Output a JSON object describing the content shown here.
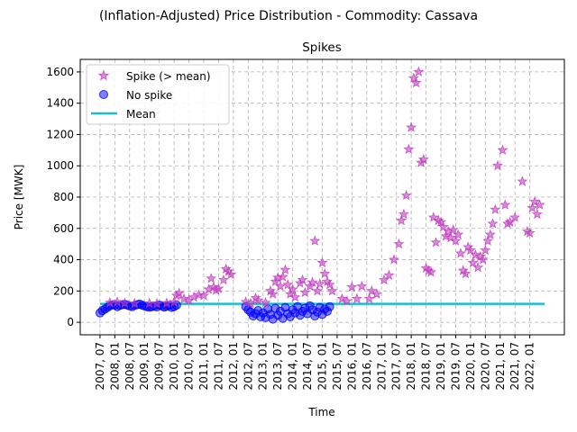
{
  "suptitle": "(Inflation-Adjusted) Price Distribution - Commodity: Cassava",
  "colors": {
    "spike": "#bf40bf",
    "no_spike": "#0000ff",
    "mean": "#17becf"
  },
  "chart_data": {
    "type": "scatter",
    "title": "Spikes",
    "xlabel": "Time",
    "ylabel": "Price [MWK]",
    "xlim": [
      "2006-11",
      "2023-03"
    ],
    "ylim": [
      -80,
      1680
    ],
    "grid": true,
    "legend_position": "upper-left",
    "x_ticks": [
      "2007, 07",
      "2008, 01",
      "2008, 07",
      "2009, 01",
      "2009, 07",
      "2010, 01",
      "2010, 07",
      "2011, 01",
      "2011, 07",
      "2012, 01",
      "2012, 07",
      "2013, 01",
      "2013, 07",
      "2014, 01",
      "2014, 07",
      "2015, 01",
      "2015, 07",
      "2016, 01",
      "2016, 07",
      "2017, 01",
      "2017, 07",
      "2018, 01",
      "2018, 07",
      "2019, 01",
      "2019, 07",
      "2020, 01",
      "2020, 07",
      "2021, 01",
      "2021, 07",
      "2022, 01"
    ],
    "y_ticks": [
      0,
      200,
      400,
      600,
      800,
      1000,
      1200,
      1400,
      1600
    ],
    "mean": {
      "name": "Mean",
      "value": 118,
      "x_range": [
        "2007-07",
        "2022-07"
      ]
    },
    "series": [
      {
        "name": "Spike (> mean)",
        "marker": "star",
        "points": [
          [
            "2007-11",
            125
          ],
          [
            "2008-02",
            130
          ],
          [
            "2008-05",
            122
          ],
          [
            "2008-09",
            120
          ],
          [
            "2009-03",
            121
          ],
          [
            "2009-06",
            119
          ],
          [
            "2009-10",
            123
          ],
          [
            "2010-01",
            130
          ],
          [
            "2010-02",
            170
          ],
          [
            "2010-03",
            185
          ],
          [
            "2010-05",
            150
          ],
          [
            "2010-07",
            140
          ],
          [
            "2010-09",
            160
          ],
          [
            "2010-11",
            175
          ],
          [
            "2011-01",
            170
          ],
          [
            "2011-03",
            210
          ],
          [
            "2011-04",
            280
          ],
          [
            "2011-05",
            225
          ],
          [
            "2011-06",
            205
          ],
          [
            "2011-07",
            215
          ],
          [
            "2011-09",
            270
          ],
          [
            "2011-10",
            340
          ],
          [
            "2011-11",
            325
          ],
          [
            "2011-12",
            305
          ],
          [
            "2012-06",
            130
          ],
          [
            "2012-08",
            120
          ],
          [
            "2012-10",
            155
          ],
          [
            "2012-11",
            140
          ],
          [
            "2013-02",
            125
          ],
          [
            "2013-04",
            200
          ],
          [
            "2013-05",
            180
          ],
          [
            "2013-06",
            260
          ],
          [
            "2013-07",
            285
          ],
          [
            "2013-08",
            230
          ],
          [
            "2013-09",
            290
          ],
          [
            "2013-10",
            335
          ],
          [
            "2013-11",
            240
          ],
          [
            "2013-12",
            180
          ],
          [
            "2014-01",
            210
          ],
          [
            "2014-02",
            160
          ],
          [
            "2014-04",
            250
          ],
          [
            "2014-05",
            270
          ],
          [
            "2014-06",
            190
          ],
          [
            "2014-08",
            230
          ],
          [
            "2014-09",
            255
          ],
          [
            "2014-10",
            520
          ],
          [
            "2014-11",
            200
          ],
          [
            "2014-12",
            245
          ],
          [
            "2015-01",
            380
          ],
          [
            "2015-02",
            310
          ],
          [
            "2015-03",
            260
          ],
          [
            "2015-04",
            240
          ],
          [
            "2015-05",
            200
          ],
          [
            "2015-09",
            150
          ],
          [
            "2015-11",
            135
          ],
          [
            "2016-01",
            225
          ],
          [
            "2016-03",
            150
          ],
          [
            "2016-05",
            230
          ],
          [
            "2016-08",
            150
          ],
          [
            "2016-09",
            200
          ],
          [
            "2016-11",
            180
          ],
          [
            "2017-02",
            270
          ],
          [
            "2017-04",
            300
          ],
          [
            "2017-06",
            400
          ],
          [
            "2017-08",
            500
          ],
          [
            "2017-09",
            650
          ],
          [
            "2017-10",
            690
          ],
          [
            "2017-11",
            810
          ],
          [
            "2017-12",
            1105
          ],
          [
            "2018-01",
            1245
          ],
          [
            "2018-02",
            1560
          ],
          [
            "2018-03",
            1530
          ],
          [
            "2018-04",
            1600
          ],
          [
            "2018-05",
            1020
          ],
          [
            "2018-06",
            1040
          ],
          [
            "2018-07",
            345
          ],
          [
            "2018-08",
            330
          ],
          [
            "2018-09",
            320
          ],
          [
            "2018-10",
            670
          ],
          [
            "2018-11",
            510
          ],
          [
            "2018-12",
            650
          ],
          [
            "2019-01",
            640
          ],
          [
            "2019-02",
            610
          ],
          [
            "2019-03",
            550
          ],
          [
            "2019-04",
            580
          ],
          [
            "2019-05",
            540
          ],
          [
            "2019-06",
            590
          ],
          [
            "2019-07",
            520
          ],
          [
            "2019-08",
            560
          ],
          [
            "2019-09",
            440
          ],
          [
            "2019-10",
            330
          ],
          [
            "2019-11",
            310
          ],
          [
            "2019-12",
            480
          ],
          [
            "2020-01",
            460
          ],
          [
            "2020-02",
            380
          ],
          [
            "2020-03",
            430
          ],
          [
            "2020-04",
            350
          ],
          [
            "2020-05",
            420
          ],
          [
            "2020-06",
            400
          ],
          [
            "2020-07",
            460
          ],
          [
            "2020-08",
            520
          ],
          [
            "2020-09",
            560
          ],
          [
            "2020-10",
            630
          ],
          [
            "2020-11",
            720
          ],
          [
            "2020-12",
            1000
          ],
          [
            "2021-02",
            1100
          ],
          [
            "2021-03",
            750
          ],
          [
            "2021-04",
            630
          ],
          [
            "2021-05",
            640
          ],
          [
            "2021-07",
            670
          ],
          [
            "2021-10",
            900
          ],
          [
            "2021-12",
            580
          ],
          [
            "2022-01",
            570
          ],
          [
            "2022-02",
            730
          ],
          [
            "2022-03",
            770
          ],
          [
            "2022-04",
            690
          ],
          [
            "2022-05",
            750
          ]
        ]
      },
      {
        "name": "No spike",
        "marker": "circle",
        "points": [
          [
            "2007-07",
            60
          ],
          [
            "2007-08",
            75
          ],
          [
            "2007-09",
            85
          ],
          [
            "2007-10",
            95
          ],
          [
            "2007-11",
            105
          ],
          [
            "2007-12",
            112
          ],
          [
            "2008-01",
            110
          ],
          [
            "2008-02",
            100
          ],
          [
            "2008-03",
            108
          ],
          [
            "2008-04",
            112
          ],
          [
            "2008-05",
            115
          ],
          [
            "2008-06",
            110
          ],
          [
            "2008-07",
            105
          ],
          [
            "2008-08",
            100
          ],
          [
            "2008-09",
            108
          ],
          [
            "2008-10",
            112
          ],
          [
            "2008-11",
            116
          ],
          [
            "2008-12",
            110
          ],
          [
            "2009-01",
            104
          ],
          [
            "2009-02",
            100
          ],
          [
            "2009-03",
            96
          ],
          [
            "2009-04",
            100
          ],
          [
            "2009-05",
            104
          ],
          [
            "2009-06",
            98
          ],
          [
            "2009-07",
            110
          ],
          [
            "2009-08",
            105
          ],
          [
            "2009-09",
            97
          ],
          [
            "2009-10",
            103
          ],
          [
            "2009-11",
            108
          ],
          [
            "2009-12",
            95
          ],
          [
            "2010-01",
            100
          ],
          [
            "2010-02",
            110
          ],
          [
            "2012-06",
            100
          ],
          [
            "2012-07",
            80
          ],
          [
            "2012-08",
            65
          ],
          [
            "2012-09",
            40
          ],
          [
            "2012-10",
            55
          ],
          [
            "2012-11",
            75
          ],
          [
            "2012-12",
            35
          ],
          [
            "2013-01",
            60
          ],
          [
            "2013-02",
            30
          ],
          [
            "2013-03",
            85
          ],
          [
            "2013-04",
            50
          ],
          [
            "2013-05",
            20
          ],
          [
            "2013-06",
            90
          ],
          [
            "2013-07",
            45
          ],
          [
            "2013-08",
            70
          ],
          [
            "2013-09",
            25
          ],
          [
            "2013-10",
            95
          ],
          [
            "2013-11",
            55
          ],
          [
            "2013-12",
            35
          ],
          [
            "2014-01",
            80
          ],
          [
            "2014-02",
            60
          ],
          [
            "2014-03",
            100
          ],
          [
            "2014-04",
            45
          ],
          [
            "2014-05",
            70
          ],
          [
            "2014-06",
            90
          ],
          [
            "2014-07",
            55
          ],
          [
            "2014-08",
            105
          ],
          [
            "2014-09",
            80
          ],
          [
            "2014-10",
            40
          ],
          [
            "2014-11",
            65
          ],
          [
            "2014-12",
            95
          ],
          [
            "2015-01",
            50
          ],
          [
            "2015-02",
            85
          ],
          [
            "2015-03",
            70
          ],
          [
            "2015-04",
            100
          ]
        ]
      }
    ]
  }
}
